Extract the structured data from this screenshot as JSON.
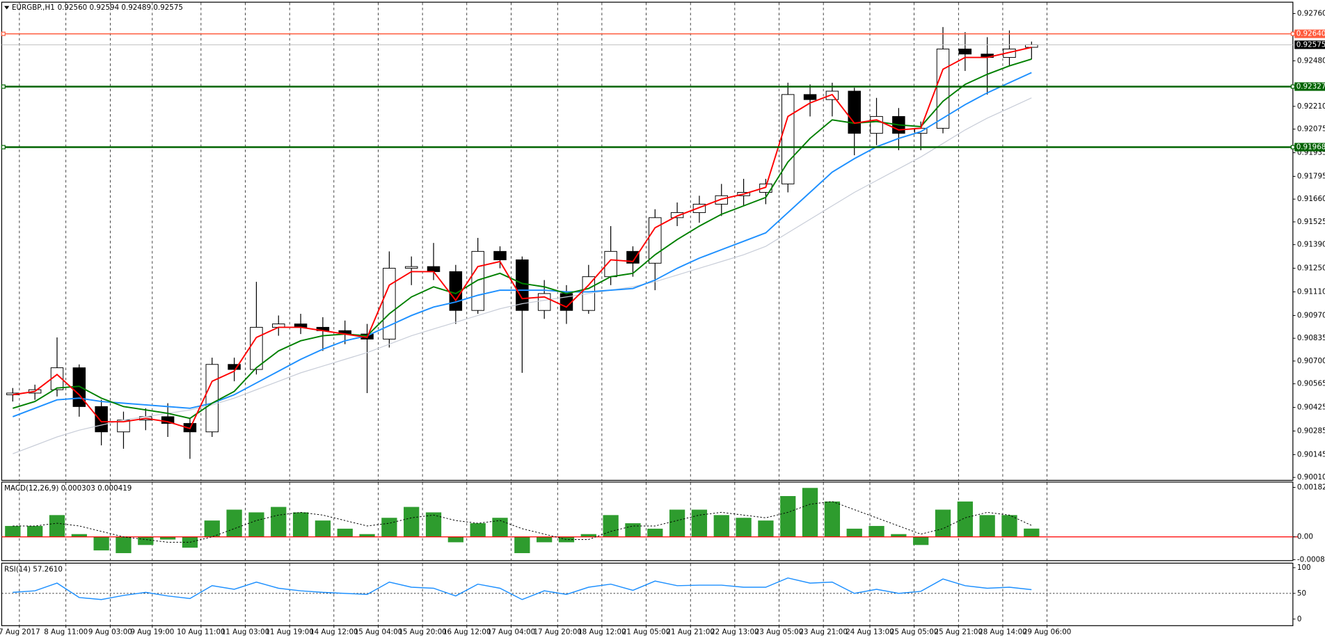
{
  "chart_data": [
    {
      "type": "candlestick",
      "title": "EURGBP.,H1",
      "subtitle": "0.92560 0.92594 0.92489 0.92575",
      "open": [
        0.905,
        0.9051,
        0.9053,
        0.9066,
        0.9043,
        0.9028,
        0.9035,
        0.9037,
        0.9033,
        0.9028,
        0.9068,
        0.9065,
        0.909,
        0.9092,
        0.909,
        0.9088,
        0.9086,
        0.9083,
        0.9125,
        0.9126,
        0.9123,
        0.91,
        0.9135,
        0.913,
        0.91,
        0.911,
        0.91,
        0.912,
        0.9135,
        0.9128,
        0.9155,
        0.9158,
        0.9163,
        0.9168,
        0.917,
        0.9175,
        0.9228,
        0.9225,
        0.923,
        0.9205,
        0.9215,
        0.9205,
        0.9208,
        0.9255,
        0.9252,
        0.925,
        0.9256
      ],
      "high": [
        0.9054,
        0.9056,
        0.9084,
        0.9068,
        0.9047,
        0.904,
        0.9042,
        0.9045,
        0.9036,
        0.9072,
        0.9072,
        0.9117,
        0.9097,
        0.9098,
        0.9096,
        0.9094,
        0.9092,
        0.9135,
        0.9132,
        0.914,
        0.9127,
        0.9143,
        0.9138,
        0.9132,
        0.9118,
        0.9115,
        0.9127,
        0.915,
        0.9138,
        0.916,
        0.9164,
        0.9168,
        0.9175,
        0.9178,
        0.9178,
        0.9235,
        0.9234,
        0.9235,
        0.9232,
        0.9226,
        0.922,
        0.9212,
        0.9268,
        0.9265,
        0.9262,
        0.9266,
        0.92594
      ],
      "low": [
        0.9046,
        0.9047,
        0.9049,
        0.9037,
        0.902,
        0.9018,
        0.9029,
        0.9025,
        0.9012,
        0.9025,
        0.9058,
        0.9062,
        0.9085,
        0.9086,
        0.9076,
        0.908,
        0.9051,
        0.9078,
        0.9115,
        0.9118,
        0.9092,
        0.9098,
        0.9125,
        0.9063,
        0.9095,
        0.9092,
        0.9098,
        0.9115,
        0.912,
        0.9112,
        0.915,
        0.9152,
        0.9156,
        0.9162,
        0.9163,
        0.917,
        0.9215,
        0.9215,
        0.9192,
        0.9198,
        0.9195,
        0.9195,
        0.9205,
        0.9242,
        0.9228,
        0.9245,
        0.92489
      ],
      "close": [
        0.9051,
        0.9053,
        0.9066,
        0.9043,
        0.9028,
        0.9035,
        0.9037,
        0.9033,
        0.9028,
        0.9068,
        0.9065,
        0.909,
        0.9092,
        0.909,
        0.9088,
        0.9086,
        0.9083,
        0.9125,
        0.9126,
        0.9123,
        0.91,
        0.9135,
        0.913,
        0.91,
        0.911,
        0.91,
        0.912,
        0.9135,
        0.9128,
        0.9155,
        0.9158,
        0.9163,
        0.9168,
        0.917,
        0.9175,
        0.9228,
        0.9225,
        0.923,
        0.9205,
        0.9215,
        0.9205,
        0.9208,
        0.9255,
        0.9252,
        0.925,
        0.9255,
        0.92575
      ],
      "candle_color": "#000000",
      "lines": [
        {
          "color": "#c8cdd8",
          "values": [
            0.9015,
            0.902,
            0.9025,
            0.9029,
            0.9032,
            0.9035,
            0.9037,
            0.9039,
            0.9041,
            0.9044,
            0.9048,
            0.9053,
            0.9058,
            0.9063,
            0.9067,
            0.9071,
            0.9075,
            0.908,
            0.9085,
            0.9089,
            0.9093,
            0.9097,
            0.9101,
            0.9104,
            0.9106,
            0.9108,
            0.911,
            0.9112,
            0.9114,
            0.9117,
            0.9121,
            0.9125,
            0.9129,
            0.9133,
            0.9138,
            0.9146,
            0.9154,
            0.9162,
            0.917,
            0.9177,
            0.9184,
            0.9191,
            0.9199,
            0.9207,
            0.9214,
            0.922,
            0.9226
          ]
        },
        {
          "color": "#1e90ff",
          "values": [
            0.9037,
            0.9042,
            0.9047,
            0.9048,
            0.9046,
            0.9045,
            0.9044,
            0.9043,
            0.9042,
            0.9045,
            0.905,
            0.9057,
            0.9064,
            0.9071,
            0.9077,
            0.9082,
            0.9085,
            0.9091,
            0.9097,
            0.9102,
            0.9105,
            0.9109,
            0.9112,
            0.9112,
            0.9112,
            0.9111,
            0.9111,
            0.9112,
            0.9113,
            0.9118,
            0.9125,
            0.9131,
            0.9136,
            0.9141,
            0.9146,
            0.9158,
            0.917,
            0.9182,
            0.919,
            0.9197,
            0.9202,
            0.9206,
            0.9214,
            0.9222,
            0.9229,
            0.9235,
            0.9241
          ]
        },
        {
          "color": "#008000",
          "values": [
            0.9042,
            0.9046,
            0.9054,
            0.9055,
            0.9048,
            0.9043,
            0.9041,
            0.9039,
            0.9036,
            0.9045,
            0.9052,
            0.9066,
            0.9076,
            0.9082,
            0.9085,
            0.9086,
            0.9085,
            0.9098,
            0.9108,
            0.9114,
            0.911,
            0.9118,
            0.9122,
            0.9116,
            0.9114,
            0.911,
            0.9113,
            0.912,
            0.9122,
            0.9133,
            0.9142,
            0.915,
            0.9157,
            0.9162,
            0.9167,
            0.9188,
            0.9202,
            0.9213,
            0.9211,
            0.9212,
            0.921,
            0.9209,
            0.9224,
            0.9234,
            0.924,
            0.9245,
            0.9249
          ]
        },
        {
          "color": "#ff0000",
          "values": [
            0.905,
            0.9052,
            0.9062,
            0.905,
            0.9034,
            0.9034,
            0.9036,
            0.9034,
            0.903,
            0.9058,
            0.9064,
            0.9084,
            0.909,
            0.909,
            0.9088,
            0.9086,
            0.9084,
            0.9115,
            0.9123,
            0.9123,
            0.9106,
            0.9126,
            0.9129,
            0.9107,
            0.9108,
            0.9102,
            0.9115,
            0.913,
            0.9129,
            0.9149,
            0.9156,
            0.9161,
            0.9166,
            0.9169,
            0.9173,
            0.9215,
            0.9223,
            0.9228,
            0.9211,
            0.9213,
            0.9207,
            0.9208,
            0.9243,
            0.925,
            0.925,
            0.9253,
            0.9256
          ]
        }
      ],
      "levels": [
        {
          "value": 0.9264,
          "label": "0.92640",
          "color": "#ff5a3c"
        },
        {
          "value": 0.92327,
          "label": "0.92327",
          "color": "#006400"
        },
        {
          "value": 0.91968,
          "label": "0.91968",
          "color": "#006400"
        }
      ],
      "last": {
        "value": 0.92575,
        "label": "0.92575",
        "color": "#c0c0c0"
      },
      "xlim": [
        0,
        58.3
      ],
      "xticks": [
        {
          "value": 0.8,
          "label": "7 Aug 2017"
        },
        {
          "value": 2.9,
          "label": "8 Aug 11:00"
        },
        {
          "value": 4.9,
          "label": "9 Aug 03:00"
        },
        {
          "value": 6.8,
          "label": "9 Aug 19:00"
        },
        {
          "value": 9,
          "label": "10 Aug 11:00"
        },
        {
          "value": 11,
          "label": "11 Aug 03:00"
        },
        {
          "value": 13,
          "label": "11 Aug 19:00"
        },
        {
          "value": 15,
          "label": "14 Aug 12:00"
        },
        {
          "value": 17,
          "label": "15 Aug 04:00"
        },
        {
          "value": 19,
          "label": "15 Aug 20:00"
        },
        {
          "value": 21,
          "label": "16 Aug 12:00"
        },
        {
          "value": 23,
          "label": "17 Aug 04:00"
        },
        {
          "value": 25.1,
          "label": "17 Aug 20:00"
        },
        {
          "value": 27.1,
          "label": "18 Aug 12:00"
        },
        {
          "value": 29.1,
          "label": "21 Aug 05:00"
        },
        {
          "value": 31.1,
          "label": "21 Aug 21:00"
        },
        {
          "value": 33.1,
          "label": "22 Aug 13:00"
        },
        {
          "value": 35.1,
          "label": "23 Aug 05:00"
        },
        {
          "value": 37.1,
          "label": "23 Aug 21:00"
        },
        {
          "value": 39.2,
          "label": "24 Aug 13:00"
        },
        {
          "value": 41.2,
          "label": "25 Aug 05:00"
        },
        {
          "value": 43.2,
          "label": "25 Aug 21:00"
        },
        {
          "value": 45.2,
          "label": "28 Aug 14:00"
        },
        {
          "value": 47.2,
          "label": "29 Aug 06:00"
        }
      ],
      "ylim": [
        0.89995,
        0.92825
      ],
      "yticks": [
        {
          "value": 0.9276,
          "label": "0.92760"
        },
        {
          "value": 0.9248,
          "label": "0.92480"
        },
        {
          "value": 0.9221,
          "label": "0.92210"
        },
        0.92075,
        0.91935,
        0.91795,
        {
          "value": 0.9166,
          "label": "0.91660"
        },
        0.91525,
        {
          "value": 0.9139,
          "label": "0.91390"
        },
        {
          "value": 0.9125,
          "label": "0.91250"
        },
        {
          "value": 0.9111,
          "label": "0.91110"
        },
        {
          "value": 0.9097,
          "label": "0.90970"
        },
        0.90835,
        {
          "value": 0.907,
          "label": "0.90700"
        },
        0.90565,
        0.90425,
        0.90285,
        0.90145,
        {
          "value": 0.9001,
          "label": "0.90010"
        }
      ],
      "grid": true
    },
    {
      "type": "macd",
      "title": "MACD(12,26,9) 0.000303 0.000419",
      "values": [
        0.0004,
        0.0004,
        0.0008,
        0.0001,
        -0.0005,
        -0.0006,
        -0.0003,
        -0.0001,
        -0.0004,
        0.0006,
        0.001,
        0.0009,
        0.0011,
        0.0009,
        0.0006,
        0.0003,
        0.0001,
        0.0007,
        0.0011,
        0.0009,
        -0.0002,
        0.0005,
        0.0007,
        -0.0006,
        -0.0002,
        -0.0002,
        0.0001,
        0.0008,
        0.0005,
        0.0003,
        0.001,
        0.001,
        0.0008,
        0.0007,
        0.0006,
        0.0015,
        0.0018,
        0.0013,
        0.0003,
        0.0004,
        0.0001,
        -0.0003,
        0.001,
        0.0013,
        0.0008,
        0.0008,
        0.000303
      ],
      "signal": [
        0.0004,
        0.0004,
        0.0005,
        0.0004,
        0.0002,
        0,
        -0.0001,
        -0.0002,
        -0.0002,
        0,
        0.0003,
        0.0006,
        0.0008,
        0.0009,
        0.0008,
        0.0006,
        0.0004,
        0.0005,
        0.0007,
        0.0008,
        0.0006,
        0.0005,
        0.0006,
        0.0003,
        0.0001,
        -0.0001,
        -0.0001,
        0.0002,
        0.0004,
        0.0004,
        0.0006,
        0.0008,
        0.0009,
        0.0008,
        0.0007,
        0.0009,
        0.0012,
        0.0013,
        0.001,
        0.0007,
        0.0004,
        0.0001,
        0.0003,
        0.0007,
        0.0009,
        0.0008,
        0.000419
      ],
      "color": "#2e9c2e",
      "signal_color": "#000000",
      "zero_color": "#ff0000",
      "ylim": [
        -0.00086,
        0.002
      ],
      "yticks": [
        0.00182,
        {
          "value": 0,
          "label": "0.00"
        },
        -0.000839
      ]
    },
    {
      "type": "line",
      "title": "RSI(14) 57.2610",
      "values": [
        52,
        55,
        70,
        42,
        38,
        46,
        52,
        45,
        40,
        65,
        58,
        72,
        60,
        55,
        52,
        50,
        48,
        72,
        62,
        60,
        45,
        68,
        60,
        38,
        55,
        48,
        62,
        68,
        56,
        74,
        65,
        66,
        66,
        62,
        62,
        80,
        70,
        72,
        50,
        58,
        50,
        54,
        78,
        65,
        60,
        62,
        57.261
      ],
      "color": "#1e90ff",
      "levels": [
        50
      ],
      "ylim": [
        -12,
        108
      ],
      "yticks": [
        100,
        50,
        0
      ]
    }
  ]
}
